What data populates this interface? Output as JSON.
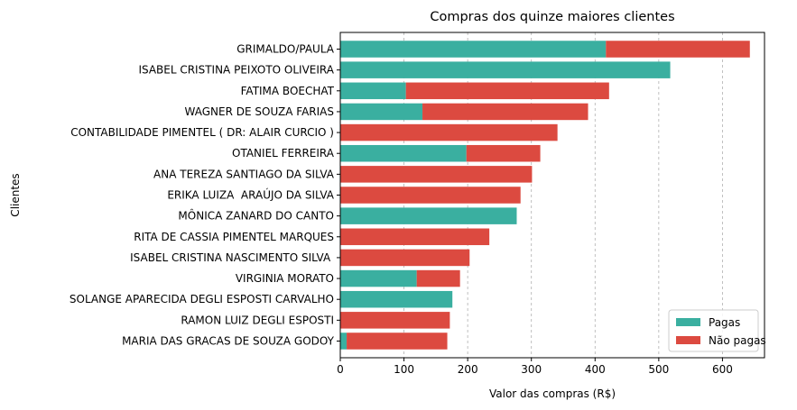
{
  "chart_data": {
    "type": "bar",
    "orientation": "horizontal",
    "stacked": true,
    "title": "Compras dos quinze maiores clientes",
    "xlabel": "Valor das compras (R$)",
    "ylabel": "Clientes",
    "xlim": [
      0,
      666
    ],
    "xticks": [
      0,
      100,
      200,
      300,
      400,
      500,
      600
    ],
    "grid": "x-dashed",
    "legend_position": "bottom-right",
    "categories": [
      "GRIMALDO/PAULA",
      "ISABEL CRISTINA PEIXOTO OLIVEIRA",
      "FATIMA BOECHAT",
      "WAGNER DE SOUZA FARIAS",
      "CONTABILIDADE PIMENTEL ( DR: ALAIR CURCIO )",
      "OTANIEL FERREIRA",
      "ANA TEREZA SANTIAGO DA SILVA",
      "ERIKA LUIZA  ARAÚJO DA SILVA",
      "MÔNICA ZANARD DO CANTO",
      "RITA DE CASSIA PIMENTEL MARQUES",
      "ISABEL CRISTINA NASCIMENTO SILVA ",
      "VIRGINIA MORATO",
      "SOLANGE APARECIDA DEGLI ESPOSTI CARVALHO",
      "RAMON LUIZ DEGLI ESPOSTI",
      "MARIA DAS GRACAS DE SOUZA GODOY"
    ],
    "series": [
      {
        "name": "Pagas",
        "color": "#3aafa0",
        "values": [
          417,
          518,
          103,
          129,
          0,
          198,
          0,
          0,
          277,
          0,
          0,
          120,
          176,
          0,
          10
        ]
      },
      {
        "name": "Não pagas",
        "color": "#dc4a40",
        "values": [
          226,
          0,
          319,
          260,
          341,
          116,
          301,
          283,
          0,
          234,
          203,
          68,
          0,
          172,
          158
        ]
      }
    ]
  }
}
